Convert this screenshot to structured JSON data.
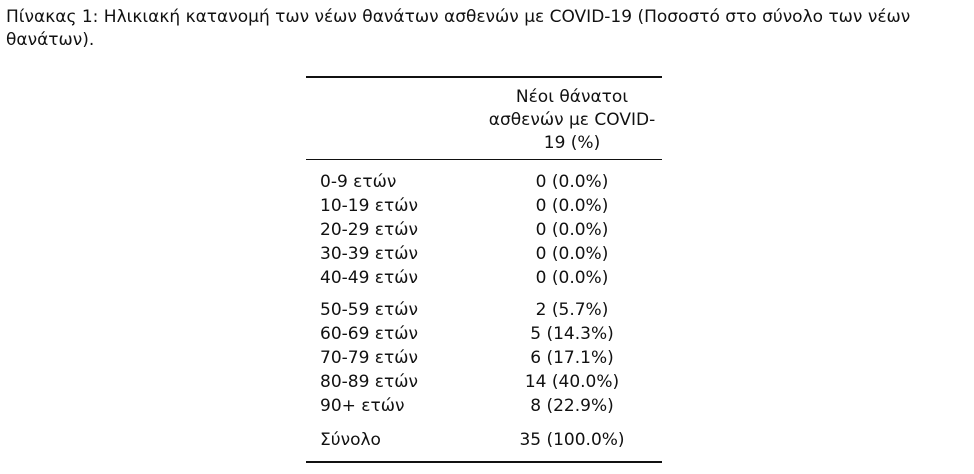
{
  "caption": "Πίνακας 1: Ηλικιακή κατανομή των νέων θανάτων ασθενών με COVID-19 (Ποσοστό στο σύνολο των νέων θανάτων).",
  "table": {
    "column_header": "Νέοι θάνατοι ασθενών με COVID-19 (%)",
    "rows": [
      {
        "label": "0-9 ετών",
        "value": "0 (0.0%)"
      },
      {
        "label": "10-19 ετών",
        "value": "0 (0.0%)"
      },
      {
        "label": "20-29 ετών",
        "value": "0 (0.0%)"
      },
      {
        "label": "30-39 ετών",
        "value": "0 (0.0%)"
      },
      {
        "label": "40-49 ετών",
        "value": "0 (0.0%)"
      },
      {
        "label": "50-59 ετών",
        "value": "2 (5.7%)"
      },
      {
        "label": "60-69 ετών",
        "value": "5 (14.3%)"
      },
      {
        "label": "70-79 ετών",
        "value": "6 (17.1%)"
      },
      {
        "label": "80-89 ετών",
        "value": "14 (40.0%)"
      },
      {
        "label": "90+ ετών",
        "value": "8 (22.9%)"
      }
    ],
    "total": {
      "label": "Σύνολο",
      "value": "35 (100.0%)"
    }
  }
}
